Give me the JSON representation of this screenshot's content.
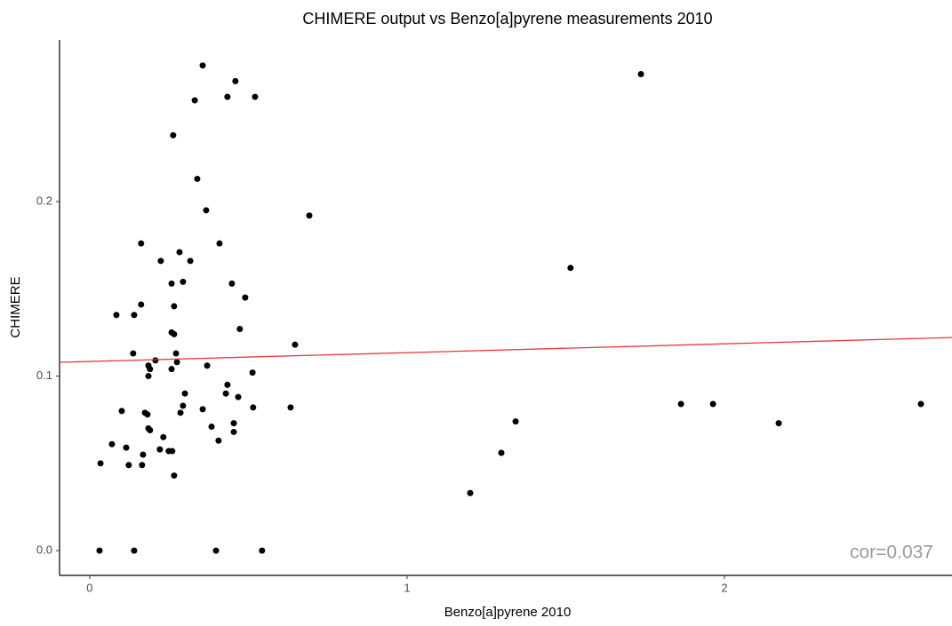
{
  "chart_data": {
    "type": "scatter",
    "title": "CHIMERE output vs Benzo[a]pyrene measurements 2010",
    "x_label": "Benzo[a]pyrene 2010",
    "y_label": "CHIMERE",
    "annotation": "cor=0.037",
    "color": "#000000",
    "xlim": [
      -0.095,
      2.717
    ],
    "ylim": [
      -0.0142,
      0.2926
    ],
    "xticks": [
      0,
      1,
      2
    ],
    "yticks": [
      {
        "value": 0,
        "label": "0.0"
      },
      0.1,
      0.2
    ],
    "grid": false,
    "x": [
      0.356,
      0.459,
      0.331,
      0.434,
      0.521,
      0.263,
      0.339,
      0.367,
      0.692,
      0.162,
      0.409,
      0.283,
      0.224,
      0.317,
      1.515,
      0.294,
      0.258,
      0.448,
      0.49,
      0.266,
      0.162,
      0.084,
      0.14,
      0.473,
      0.258,
      0.266,
      0.647,
      0.137,
      0.272,
      0.207,
      0.275,
      0.185,
      0.37,
      0.19,
      0.258,
      0.513,
      0.185,
      0.434,
      0.3,
      0.429,
      0.468,
      0.294,
      0.356,
      0.515,
      0.633,
      0.286,
      0.101,
      0.174,
      0.182,
      1.863,
      1.964,
      2.619,
      0.454,
      1.342,
      2.171,
      0.185,
      0.19,
      0.384,
      0.454,
      0.232,
      0.406,
      0.07,
      0.115,
      0.221,
      0.249,
      0.26,
      1.297,
      0.168,
      0.034,
      0.123,
      0.165,
      0.266,
      1.199,
      0.031,
      0.14,
      0.398,
      0.543,
      1.737
    ],
    "values": [
      0.278,
      0.269,
      0.258,
      0.26,
      0.26,
      0.238,
      0.213,
      0.195,
      0.192,
      0.176,
      0.176,
      0.171,
      0.166,
      0.166,
      0.162,
      0.154,
      0.153,
      0.153,
      0.145,
      0.14,
      0.141,
      0.135,
      0.135,
      0.127,
      0.125,
      0.124,
      0.118,
      0.113,
      0.113,
      0.109,
      0.108,
      0.106,
      0.106,
      0.104,
      0.104,
      0.102,
      0.1,
      0.095,
      0.09,
      0.09,
      0.088,
      0.083,
      0.081,
      0.082,
      0.082,
      0.079,
      0.08,
      0.079,
      0.078,
      0.084,
      0.084,
      0.084,
      0.073,
      0.074,
      0.073,
      0.07,
      0.069,
      0.071,
      0.068,
      0.065,
      0.063,
      0.061,
      0.059,
      0.058,
      0.057,
      0.057,
      0.056,
      0.055,
      0.05,
      0.049,
      0.049,
      0.043,
      0.033,
      0,
      0,
      0,
      0,
      0.273
    ],
    "trendline": {
      "color": "#e8393b",
      "x": [
        -0.095,
        2.717
      ],
      "y": [
        0.1079,
        0.1221
      ]
    }
  }
}
